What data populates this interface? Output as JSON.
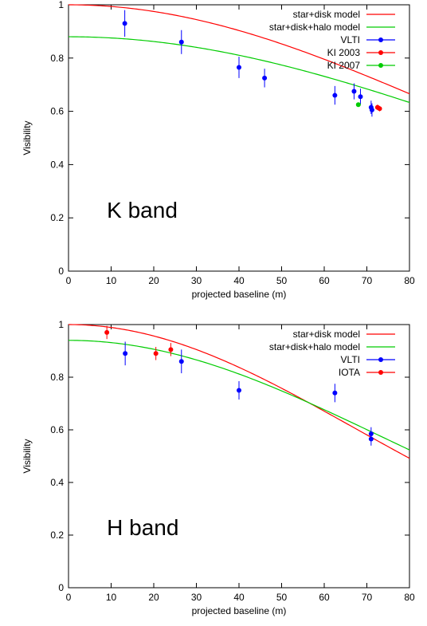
{
  "chart_data": [
    {
      "type": "scatter",
      "annotation": "K band",
      "xlabel": "projected baseline (m)",
      "ylabel": "Visibility",
      "xlim": [
        0,
        80
      ],
      "ylim": [
        0,
        1
      ],
      "xticks": [
        "0",
        "10",
        "20",
        "30",
        "40",
        "50",
        "60",
        "70",
        "80"
      ],
      "yticks": [
        "0",
        "0.2",
        "0.4",
        "0.6",
        "0.8",
        "1"
      ],
      "grid": false,
      "legend_position": "top-right",
      "models": [
        {
          "name": "star+disk model",
          "color": "#ff0000",
          "v0": 1.0,
          "b": 0.00797
        },
        {
          "name": "star+disk+halo model",
          "color": "#00cc00",
          "v0": 0.88,
          "b": 0.00717
        }
      ],
      "series": [
        {
          "name": "VLTI",
          "color": "#0000ff",
          "points": [
            {
              "x": 13.2,
              "y": 0.93,
              "err": 0.05
            },
            {
              "x": 26.5,
              "y": 0.86,
              "err": 0.045
            },
            {
              "x": 40.0,
              "y": 0.765,
              "err": 0.04
            },
            {
              "x": 46.0,
              "y": 0.725,
              "err": 0.035
            },
            {
              "x": 62.5,
              "y": 0.66,
              "err": 0.035
            },
            {
              "x": 67.0,
              "y": 0.675,
              "err": 0.03
            },
            {
              "x": 68.5,
              "y": 0.655,
              "err": 0.03
            },
            {
              "x": 71.0,
              "y": 0.615,
              "err": 0.025
            },
            {
              "x": 71.2,
              "y": 0.605,
              "err": 0.025
            }
          ]
        },
        {
          "name": "KI 2003",
          "color": "#ff0000",
          "points": [
            {
              "x": 72.5,
              "y": 0.615,
              "err": 0.01
            },
            {
              "x": 73.0,
              "y": 0.61,
              "err": 0.01
            }
          ]
        },
        {
          "name": "KI 2007",
          "color": "#00cc00",
          "points": [
            {
              "x": 68.0,
              "y": 0.625,
              "err": 0.008
            }
          ]
        }
      ]
    },
    {
      "type": "scatter",
      "annotation": "H band",
      "xlabel": "projected baseline (m)",
      "ylabel": "Visibility",
      "xlim": [
        0,
        80
      ],
      "ylim": [
        0,
        1
      ],
      "xticks": [
        "0",
        "10",
        "20",
        "30",
        "40",
        "50",
        "60",
        "70",
        "80"
      ],
      "yticks": [
        "0",
        "0.2",
        "0.4",
        "0.6",
        "0.8",
        "1"
      ],
      "grid": false,
      "legend_position": "top-right",
      "models": [
        {
          "name": "star+disk model",
          "color": "#ff0000",
          "v0": 1.0,
          "b": 0.01053
        },
        {
          "name": "star+disk+halo model",
          "color": "#00cc00",
          "v0": 0.94,
          "b": 0.00956
        }
      ],
      "series": [
        {
          "name": "VLTI",
          "color": "#0000ff",
          "points": [
            {
              "x": 13.3,
              "y": 0.89,
              "err": 0.045
            },
            {
              "x": 26.5,
              "y": 0.86,
              "err": 0.045
            },
            {
              "x": 40.0,
              "y": 0.75,
              "err": 0.035
            },
            {
              "x": 62.5,
              "y": 0.74,
              "err": 0.035
            },
            {
              "x": 71.0,
              "y": 0.585,
              "err": 0.025
            },
            {
              "x": 71.0,
              "y": 0.565,
              "err": 0.025
            }
          ]
        },
        {
          "name": "IOTA",
          "color": "#ff0000",
          "points": [
            {
              "x": 9.0,
              "y": 0.97,
              "err": 0.025
            },
            {
              "x": 20.5,
              "y": 0.89,
              "err": 0.025
            },
            {
              "x": 24.0,
              "y": 0.905,
              "err": 0.025
            }
          ]
        }
      ]
    }
  ]
}
